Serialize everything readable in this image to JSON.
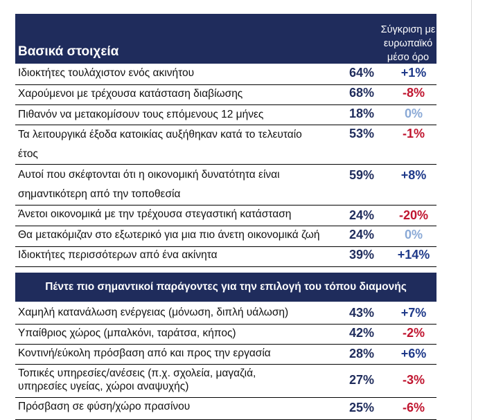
{
  "section1": {
    "title": "Βασικά στοιχεία",
    "comparison_header": [
      "Σύγκριση με",
      "ευρωπαϊκό",
      "μέσο όρο"
    ],
    "rows": [
      {
        "label": [
          "Ιδιοκτήτες τουλάχιστον ενός ακινήτου"
        ],
        "value": "64%",
        "diff": "+1%",
        "diff_type": "pos"
      },
      {
        "label": [
          "Χαρούμενοι με τρέχουσα κατάσταση διαβίωσης"
        ],
        "value": "68%",
        "diff": "-8%",
        "diff_type": "neg"
      },
      {
        "label": [
          "Πιθανόν να μετακομίσουν τους επόμενους 12 μήνες"
        ],
        "value": "18%",
        "diff": "0%",
        "diff_type": "zero"
      },
      {
        "label": [
          "Τα λειτουργικά έξοδα κατοικίας αυξήθηκαν κατά το τελευταίο",
          "έτος"
        ],
        "value": "53%",
        "diff": "-1%",
        "diff_type": "neg"
      },
      {
        "label": [
          "Αυτοί που σκέφτονται ότι η οικονομική δυνατότητα είναι",
          "σημαντικότερη από την τοποθεσία"
        ],
        "value": "59%",
        "diff": "+8%",
        "diff_type": "pos"
      },
      {
        "label": [
          "Άνετοι οικονομικά με την τρέχουσα στεγαστική κατάσταση"
        ],
        "value": "24%",
        "diff": "-20%",
        "diff_type": "neg"
      },
      {
        "label": [
          "Θα μετακόμιζαν στο εξωτερικό για μια πιο άνετη οικονομικά ζωή"
        ],
        "value": "24%",
        "diff": "0%",
        "diff_type": "zero"
      },
      {
        "label": [
          "Ιδιοκτήτες περισσότερων από ένα ακίνητα"
        ],
        "value": "39%",
        "diff": "+14%",
        "diff_type": "pos"
      }
    ]
  },
  "section2": {
    "title": "Πέντε πιο σημαντικοί παράγοντες για την επιλογή του τόπου διαμονής",
    "rows": [
      {
        "label": [
          "Χαμηλή κατανάλωση ενέργειας (μόνωση, διπλή υάλωση)"
        ],
        "value": "43%",
        "diff": "+7%",
        "diff_type": "pos"
      },
      {
        "label": [
          "Υπαίθριος χώρος (μπαλκόνι, ταράτσα, κήπος)"
        ],
        "value": "42%",
        "diff": "-2%",
        "diff_type": "neg"
      },
      {
        "label": [
          "Κοντινή/εύκολη πρόσβαση από και προς την εργασία"
        ],
        "value": "28%",
        "diff": "+6%",
        "diff_type": "pos"
      },
      {
        "label": [
          "Τοπικές υπηρεσίες/ανέσεις (π.χ. σχολεία, μαγαζιά,",
          "υπηρεσίες υγείας, χώροι αναψυχής)"
        ],
        "value": "27%",
        "diff": "-3%",
        "diff_type": "neg"
      },
      {
        "label": [
          "Πρόσβαση σε φύση/χώρο πρασίνου"
        ],
        "value": "25%",
        "diff": "-6%",
        "diff_type": "neg"
      }
    ]
  }
}
